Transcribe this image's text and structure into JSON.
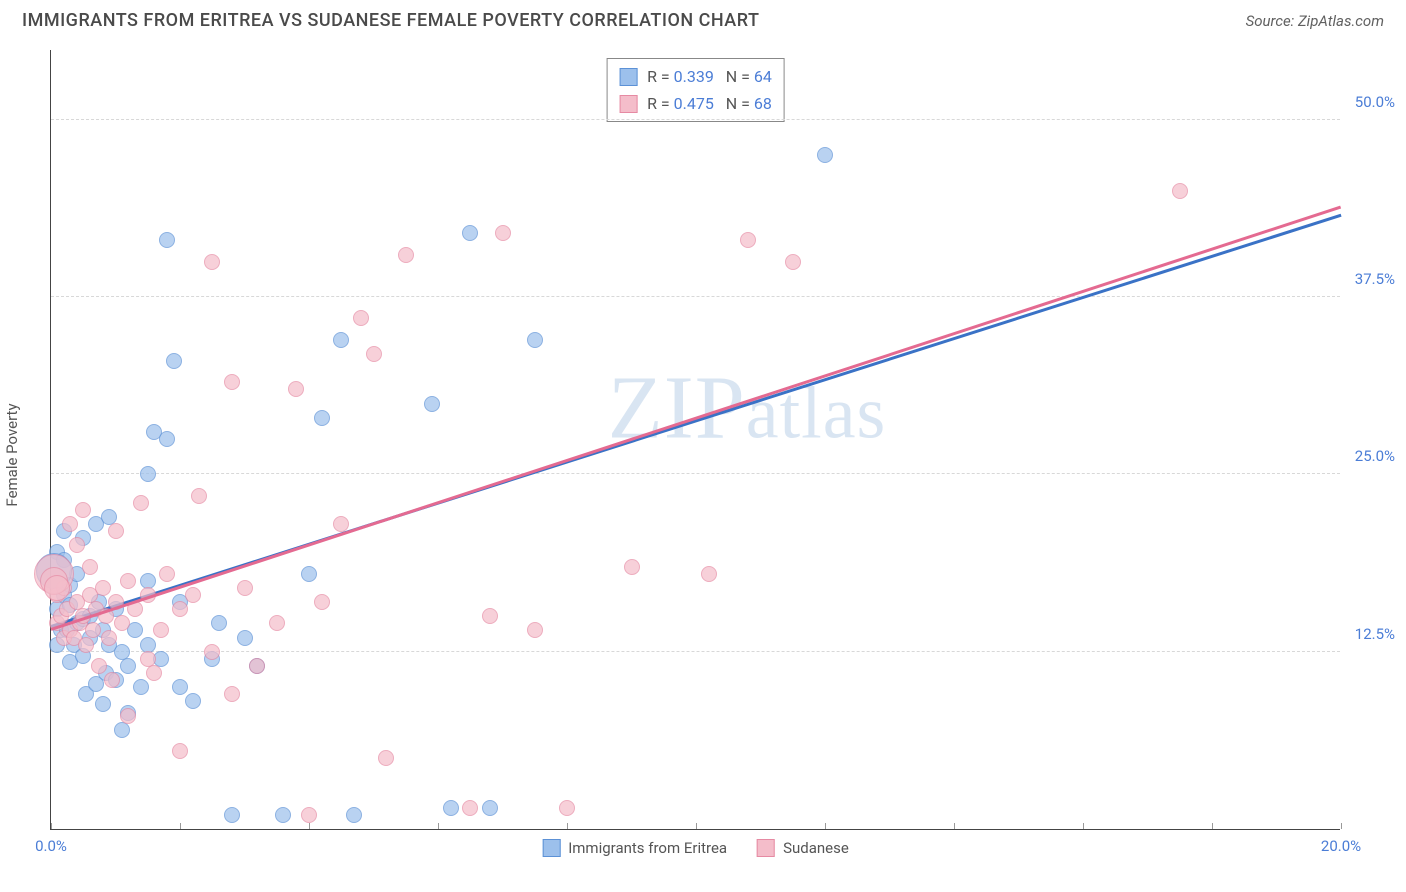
{
  "title": "IMMIGRANTS FROM ERITREA VS SUDANESE FEMALE POVERTY CORRELATION CHART",
  "source": "Source: ZipAtlas.com",
  "watermark": "ZIPatlas",
  "chart": {
    "type": "scatter",
    "ylabel": "Female Poverty",
    "xlim": [
      0,
      20
    ],
    "ylim": [
      0,
      55
    ],
    "y_ticks": [
      {
        "v": 12.5,
        "l": "12.5%"
      },
      {
        "v": 25.0,
        "l": "25.0%"
      },
      {
        "v": 37.5,
        "l": "37.5%"
      },
      {
        "v": 50.0,
        "l": "50.0%"
      }
    ],
    "x_ticks": [
      {
        "v": 0,
        "l": "0.0%"
      },
      {
        "v": 20,
        "l": "20.0%"
      }
    ],
    "x_minor_ticks": [
      0,
      2,
      4,
      6,
      8,
      10,
      12,
      14,
      16,
      18,
      20
    ],
    "grid_color": "#d8d8d8",
    "background_color": "#ffffff",
    "axis_color": "#444444",
    "tick_label_color": "#4b7dd6",
    "marker_radius": 8,
    "marker_stroke_width": 1.2,
    "marker_fill_opacity": 0.35,
    "trend_line_width": 2.5,
    "series": [
      {
        "name": "Immigrants from Eritrea",
        "fill_color": "#9cc0ec",
        "stroke_color": "#5c91d6",
        "trend_color": "#3a72c6",
        "R": "0.339",
        "N": "64",
        "trend": {
          "x0": 0,
          "y0": 14.2,
          "x1": 20,
          "y1": 43.2
        },
        "points": [
          [
            0.1,
            15.5
          ],
          [
            0.1,
            19.5
          ],
          [
            0.1,
            13.0
          ],
          [
            0.15,
            14.0
          ],
          [
            0.2,
            16.5
          ],
          [
            0.2,
            19.0
          ],
          [
            0.2,
            21.0
          ],
          [
            0.25,
            14.0
          ],
          [
            0.3,
            15.8
          ],
          [
            0.3,
            17.2
          ],
          [
            0.3,
            11.8
          ],
          [
            0.35,
            13.0
          ],
          [
            0.4,
            18.0
          ],
          [
            0.4,
            14.5
          ],
          [
            0.5,
            14.8
          ],
          [
            0.5,
            20.5
          ],
          [
            0.5,
            12.2
          ],
          [
            0.55,
            9.5
          ],
          [
            0.6,
            13.5
          ],
          [
            0.6,
            15.0
          ],
          [
            0.7,
            10.2
          ],
          [
            0.7,
            21.5
          ],
          [
            0.75,
            16.0
          ],
          [
            0.8,
            8.8
          ],
          [
            0.8,
            14.0
          ],
          [
            0.85,
            11.0
          ],
          [
            0.9,
            22.0
          ],
          [
            0.9,
            13.0
          ],
          [
            1.0,
            10.5
          ],
          [
            1.0,
            15.5
          ],
          [
            1.1,
            12.5
          ],
          [
            1.1,
            7.0
          ],
          [
            1.2,
            8.2
          ],
          [
            1.2,
            11.5
          ],
          [
            1.3,
            14.0
          ],
          [
            1.4,
            10.0
          ],
          [
            1.5,
            25.0
          ],
          [
            1.5,
            13.0
          ],
          [
            1.5,
            17.5
          ],
          [
            1.6,
            28.0
          ],
          [
            1.7,
            12.0
          ],
          [
            1.8,
            27.5
          ],
          [
            1.8,
            41.5
          ],
          [
            1.9,
            33.0
          ],
          [
            2.0,
            16.0
          ],
          [
            2.0,
            10.0
          ],
          [
            2.2,
            9.0
          ],
          [
            2.5,
            12.0
          ],
          [
            2.6,
            14.5
          ],
          [
            2.8,
            1.0
          ],
          [
            3.0,
            13.5
          ],
          [
            3.2,
            11.5
          ],
          [
            3.6,
            1.0
          ],
          [
            4.0,
            18.0
          ],
          [
            4.2,
            29.0
          ],
          [
            4.5,
            34.5
          ],
          [
            4.7,
            1.0
          ],
          [
            5.9,
            30.0
          ],
          [
            6.2,
            1.5
          ],
          [
            6.5,
            42.0
          ],
          [
            6.8,
            1.5
          ],
          [
            7.5,
            34.5
          ],
          [
            12.0,
            47.5
          ],
          [
            0.05,
            18.2,
            18
          ]
        ]
      },
      {
        "name": "Sudanese",
        "fill_color": "#f4bdca",
        "stroke_color": "#e68aa3",
        "trend_color": "#e46a91",
        "R": "0.475",
        "N": "68",
        "trend": {
          "x0": 0,
          "y0": 14.0,
          "x1": 20,
          "y1": 43.8
        },
        "points": [
          [
            0.1,
            14.5
          ],
          [
            0.1,
            16.5
          ],
          [
            0.15,
            15.0
          ],
          [
            0.2,
            13.5
          ],
          [
            0.2,
            17.0
          ],
          [
            0.25,
            15.5
          ],
          [
            0.3,
            14.0
          ],
          [
            0.3,
            21.5
          ],
          [
            0.35,
            13.5
          ],
          [
            0.4,
            16.0
          ],
          [
            0.4,
            20.0
          ],
          [
            0.45,
            14.5
          ],
          [
            0.5,
            15.0
          ],
          [
            0.5,
            22.5
          ],
          [
            0.55,
            13.0
          ],
          [
            0.6,
            16.5
          ],
          [
            0.6,
            18.5
          ],
          [
            0.65,
            14.0
          ],
          [
            0.7,
            15.5
          ],
          [
            0.75,
            11.5
          ],
          [
            0.8,
            17.0
          ],
          [
            0.85,
            15.0
          ],
          [
            0.9,
            13.5
          ],
          [
            0.95,
            10.5
          ],
          [
            1.0,
            21.0
          ],
          [
            1.0,
            16.0
          ],
          [
            1.1,
            14.5
          ],
          [
            1.2,
            17.5
          ],
          [
            1.2,
            8.0
          ],
          [
            1.3,
            15.5
          ],
          [
            1.4,
            23.0
          ],
          [
            1.5,
            12.0
          ],
          [
            1.5,
            16.5
          ],
          [
            1.6,
            11.0
          ],
          [
            1.7,
            14.0
          ],
          [
            1.8,
            18.0
          ],
          [
            2.0,
            15.5
          ],
          [
            2.0,
            5.5
          ],
          [
            2.2,
            16.5
          ],
          [
            2.3,
            23.5
          ],
          [
            2.5,
            12.5
          ],
          [
            2.5,
            40.0
          ],
          [
            2.8,
            31.5
          ],
          [
            2.8,
            9.5
          ],
          [
            3.0,
            17.0
          ],
          [
            3.2,
            11.5
          ],
          [
            3.5,
            14.5
          ],
          [
            3.8,
            31.0
          ],
          [
            4.0,
            1.0
          ],
          [
            4.2,
            16.0
          ],
          [
            4.5,
            21.5
          ],
          [
            4.8,
            36.0
          ],
          [
            5.0,
            33.5
          ],
          [
            5.2,
            5.0
          ],
          [
            5.5,
            40.5
          ],
          [
            6.5,
            1.5
          ],
          [
            6.8,
            15.0
          ],
          [
            7.0,
            42.0
          ],
          [
            7.5,
            14.0
          ],
          [
            8.0,
            1.5
          ],
          [
            9.0,
            18.5
          ],
          [
            10.2,
            18.0
          ],
          [
            10.8,
            41.5
          ],
          [
            11.5,
            40.0
          ],
          [
            17.5,
            45.0
          ],
          [
            0.05,
            18.0,
            20
          ],
          [
            0.05,
            17.5,
            14
          ],
          [
            0.1,
            17.0,
            13
          ]
        ]
      }
    ],
    "bottom_legend": [
      {
        "label": "Immigrants from Eritrea",
        "fill": "#9cc0ec",
        "stroke": "#5c91d6"
      },
      {
        "label": "Sudanese",
        "fill": "#f4bdca",
        "stroke": "#e68aa3"
      }
    ]
  }
}
